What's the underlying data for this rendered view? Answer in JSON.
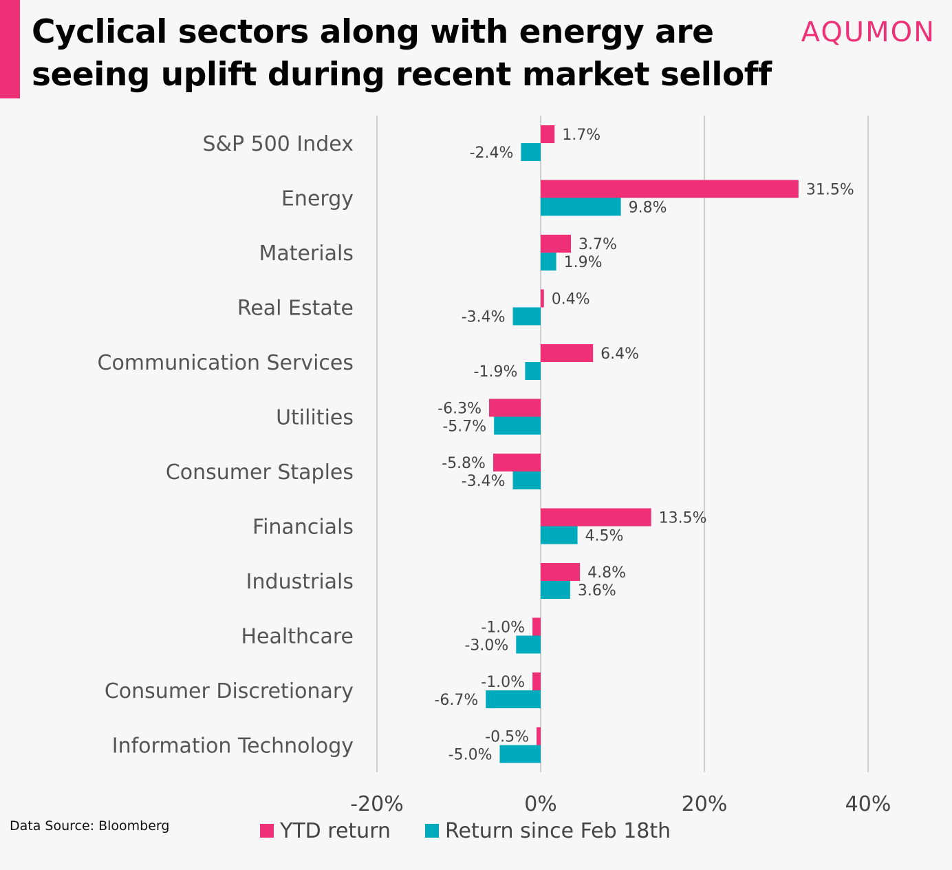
{
  "header": {
    "title_line1": "Cyclical sectors along with energy are",
    "title_line2": "seeing uplift during recent market selloff",
    "brand": "AQUMON"
  },
  "footer": {
    "source": "Data Source: Bloomberg"
  },
  "colors": {
    "accent": "#ee3177",
    "ytd": "#ee3177",
    "since_feb": "#00aabd",
    "grid": "#d0d0d0",
    "category_text": "#555555",
    "label_text": "#444444",
    "background": "#f7f7f7"
  },
  "chart_data": {
    "type": "bar",
    "orientation": "horizontal",
    "categories": [
      "S&P 500 Index",
      "Energy",
      "Materials",
      "Real Estate",
      "Communication Services",
      "Utilities",
      "Consumer Staples",
      "Financials",
      "Industrials",
      "Healthcare",
      "Consumer Discretionary",
      "Information Technology"
    ],
    "series": [
      {
        "name": "YTD return",
        "values": [
          1.7,
          31.5,
          3.7,
          0.4,
          6.4,
          -6.3,
          -5.8,
          13.5,
          4.8,
          -1.0,
          -1.0,
          -0.5
        ],
        "labels": [
          "1.7%",
          "31.5%",
          "3.7%",
          "0.4%",
          "6.4%",
          "-6.3%",
          "-5.8%",
          "13.5%",
          "4.8%",
          "-1.0%",
          "-1.0%",
          "-0.5%"
        ]
      },
      {
        "name": "Return since Feb 18th",
        "values": [
          -2.4,
          9.8,
          1.9,
          -3.4,
          -1.9,
          -5.7,
          -3.4,
          4.5,
          3.6,
          -3.0,
          -6.7,
          -5.0
        ],
        "labels": [
          "-2.4%",
          "9.8%",
          "1.9%",
          "-3.4%",
          "-1.9%",
          "-5.7%",
          "-3.4%",
          "4.5%",
          "3.6%",
          "-3.0%",
          "-6.7%",
          "-5.0%"
        ]
      }
    ],
    "xlim": [
      -20,
      40
    ],
    "xticks": [
      -20,
      0,
      20,
      40
    ],
    "xtick_labels": [
      "-20%",
      "0%",
      "20%",
      "40%"
    ],
    "grid": true,
    "legend_position": "bottom"
  }
}
